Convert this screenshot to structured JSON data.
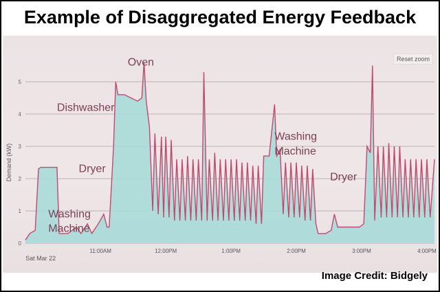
{
  "title": "Example of Disaggregated Energy Feedback",
  "credit": "Image Credit:  Bidgely",
  "reset_zoom_label": "Reset zoom",
  "colors": {
    "fill": "#a9dad8",
    "line": "#c04a6e",
    "grid": "#b9b2b4",
    "text": "#7a4055"
  },
  "chart_data": {
    "type": "area",
    "ylabel": "Demand (kW)",
    "xlabel": "",
    "date_label": "Sat Mar 22",
    "ylim": [
      0,
      5.9
    ],
    "xlim": [
      "09:51",
      "16:07"
    ],
    "grid": true,
    "yticks": [
      "0",
      "1",
      "2",
      "3",
      "4",
      "5"
    ],
    "xticks": [
      {
        "t": "11:00",
        "label": "11:00AM"
      },
      {
        "t": "12:00",
        "label": "12:00PM"
      },
      {
        "t": "13:00",
        "label": "1:00PM"
      },
      {
        "t": "14:00",
        "label": "2:00PM"
      },
      {
        "t": "15:00",
        "label": "3:00PM"
      },
      {
        "t": "16:00",
        "label": "4:00PM"
      }
    ],
    "series": [
      {
        "x": [
          "09:51",
          "09:55",
          "10:00",
          "10:03",
          "10:05",
          "10:20",
          "10:22",
          "10:30",
          "10:38",
          "10:42",
          "10:48",
          "10:52",
          "10:58",
          "11:03",
          "11:06",
          "11:08",
          "11:12",
          "11:14",
          "11:16",
          "11:22",
          "11:28",
          "11:34",
          "11:38",
          "11:40",
          "11:42",
          "11:45",
          "11:48",
          "11:50",
          "11:53",
          "11:56",
          "11:58",
          "12:00",
          "12:03",
          "12:05",
          "12:08",
          "12:10",
          "12:13",
          "12:15",
          "12:18",
          "12:20",
          "12:23",
          "12:25",
          "12:28",
          "12:30",
          "12:33",
          "12:35",
          "12:38",
          "12:40",
          "12:43",
          "12:45",
          "12:48",
          "12:50",
          "12:53",
          "12:55",
          "12:58",
          "13:00",
          "13:03",
          "13:05",
          "13:08",
          "13:10",
          "13:13",
          "13:15",
          "13:18",
          "13:20",
          "13:23",
          "13:25",
          "13:28",
          "13:30",
          "13:35",
          "13:40",
          "13:42",
          "13:45",
          "13:48",
          "13:50",
          "13:53",
          "13:55",
          "13:58",
          "14:00",
          "14:03",
          "14:05",
          "14:08",
          "14:10",
          "14:13",
          "14:15",
          "14:18",
          "14:20",
          "14:27",
          "14:32",
          "14:35",
          "14:38",
          "14:40",
          "14:50",
          "14:58",
          "15:02",
          "15:05",
          "15:08",
          "15:10",
          "15:12",
          "15:15",
          "15:18",
          "15:20",
          "15:23",
          "15:25",
          "15:28",
          "15:30",
          "15:33",
          "15:35",
          "15:38",
          "15:40",
          "15:43",
          "15:45",
          "15:48",
          "15:50",
          "15:53",
          "15:55",
          "15:58",
          "16:00",
          "16:03",
          "16:07"
        ],
        "values": [
          0.1,
          0.3,
          0.4,
          2.3,
          2.35,
          2.35,
          0.3,
          0.3,
          0.5,
          0.3,
          0.6,
          0.3,
          0.6,
          0.9,
          0.5,
          0.5,
          3.0,
          5.0,
          4.6,
          4.6,
          4.5,
          4.4,
          4.5,
          5.6,
          4.4,
          3.6,
          1.0,
          3.4,
          0.9,
          3.3,
          0.8,
          3.3,
          0.8,
          3.2,
          0.7,
          2.6,
          0.7,
          2.6,
          0.7,
          2.7,
          0.7,
          2.6,
          0.7,
          2.6,
          0.7,
          5.3,
          0.7,
          2.6,
          0.7,
          2.8,
          0.7,
          2.6,
          0.7,
          2.6,
          0.7,
          2.6,
          0.7,
          2.6,
          0.7,
          2.5,
          0.7,
          2.5,
          0.7,
          2.4,
          0.6,
          2.4,
          0.6,
          2.7,
          2.7,
          4.3,
          2.7,
          2.9,
          0.9,
          2.5,
          0.8,
          2.5,
          0.8,
          2.5,
          0.8,
          2.4,
          0.7,
          2.4,
          0.7,
          2.3,
          0.6,
          0.3,
          0.3,
          0.4,
          0.9,
          0.5,
          0.5,
          0.5,
          0.5,
          0.6,
          3.0,
          2.8,
          5.5,
          0.7,
          3.0,
          0.8,
          3.0,
          0.8,
          3.1,
          0.8,
          3.0,
          0.8,
          3.0,
          0.8,
          2.6,
          0.8,
          2.6,
          0.8,
          2.6,
          0.8,
          2.6,
          0.8,
          2.6,
          0.8,
          2.6
        ]
      }
    ],
    "annotations": [
      {
        "text": "Oven",
        "t": "11:25",
        "kw": 5.5
      },
      {
        "text": "Dishwasher",
        "t": "10:20",
        "kw": 4.1
      },
      {
        "text": "Dryer",
        "t": "10:40",
        "kw": 2.2
      },
      {
        "text": "Washing",
        "t": "10:12",
        "kw": 0.8
      },
      {
        "text": "Machine",
        "t": "10:12",
        "kw": 0.35
      },
      {
        "text": "Washing",
        "t": "13:40",
        "kw": 3.2
      },
      {
        "text": "Machine",
        "t": "13:40",
        "kw": 2.75
      },
      {
        "text": "Dryer",
        "t": "14:31",
        "kw": 1.95
      }
    ]
  }
}
